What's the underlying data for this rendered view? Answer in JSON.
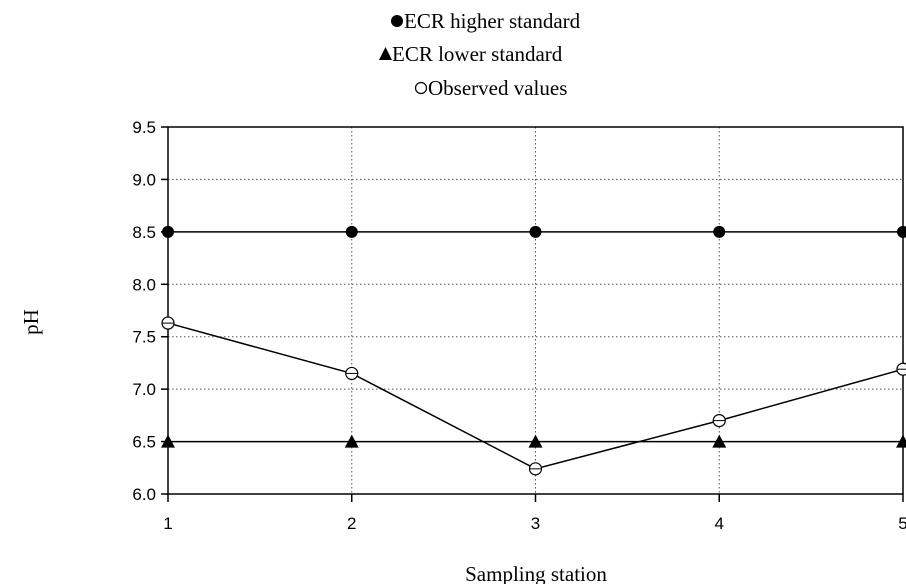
{
  "chart_data": {
    "type": "line",
    "xlabel": "Sampling station",
    "ylabel": "pH",
    "x": [
      1,
      2,
      3,
      4,
      5
    ],
    "xlim": [
      1,
      5
    ],
    "ylim": [
      6.0,
      9.5
    ],
    "x_ticks": [
      "1",
      "2",
      "3",
      "4",
      "5"
    ],
    "y_ticks": [
      "6.0",
      "6.5",
      "7.0",
      "7.5",
      "8.0",
      "8.5",
      "9.0",
      "9.5"
    ],
    "grid": true,
    "legend_position": "top-center",
    "series": [
      {
        "name": "ECR higher standard",
        "marker": "filled-circle",
        "values": [
          8.5,
          8.5,
          8.5,
          8.5,
          8.5
        ]
      },
      {
        "name": "ECR lower standard",
        "marker": "filled-triangle",
        "values": [
          6.5,
          6.5,
          6.5,
          6.5,
          6.5
        ]
      },
      {
        "name": "Observed values",
        "marker": "open-circle",
        "values": [
          7.63,
          7.15,
          6.24,
          6.7,
          7.19
        ]
      }
    ]
  }
}
